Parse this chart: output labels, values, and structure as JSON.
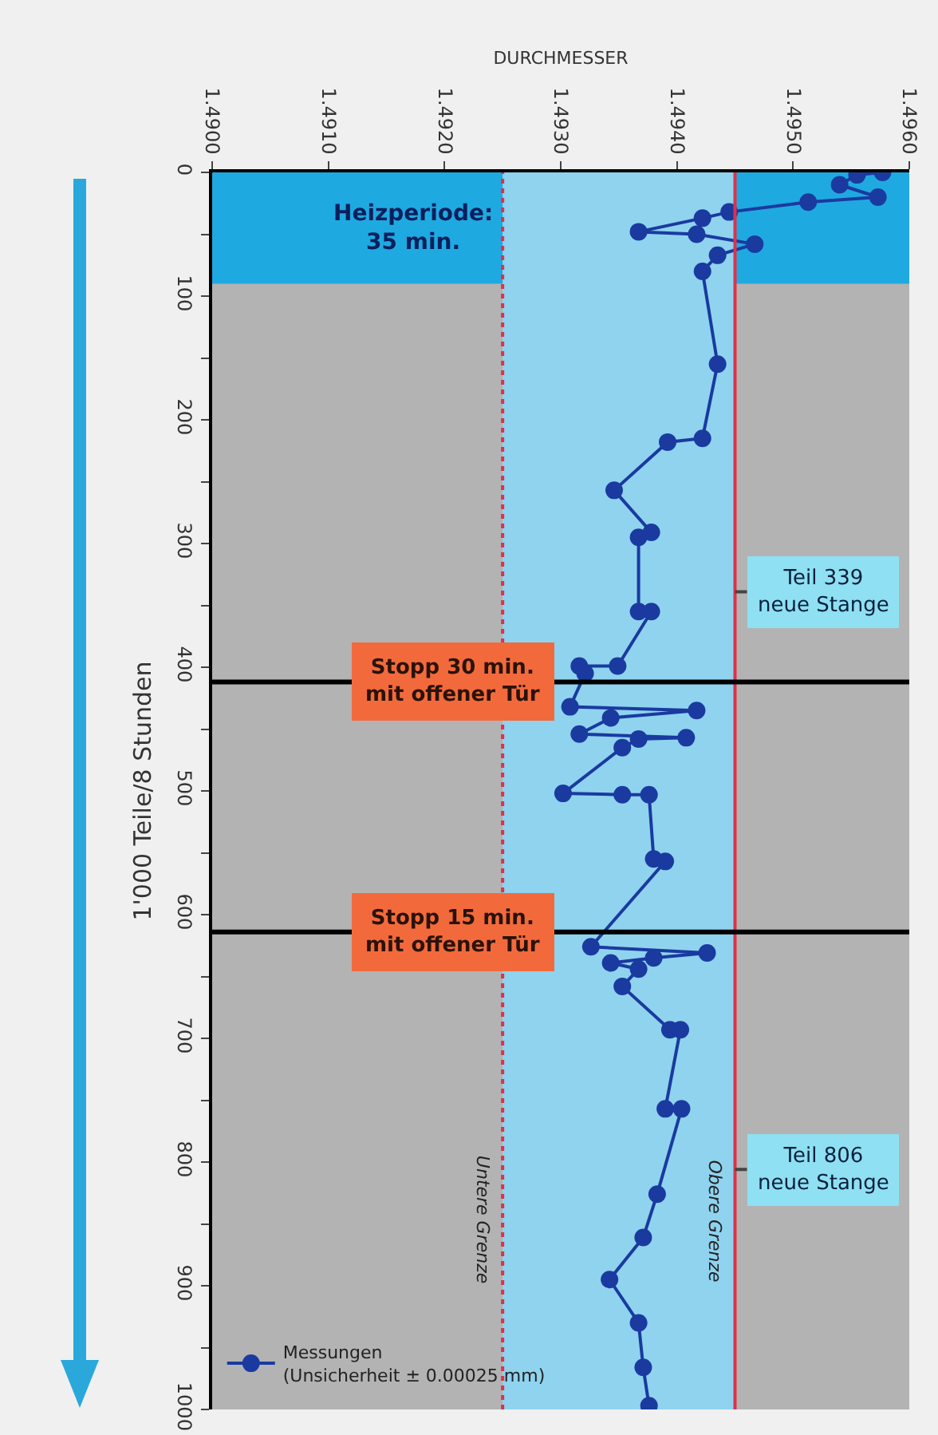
{
  "chart_data": {
    "type": "line",
    "xlabel": "DURCHMESSER",
    "ylabel": "1'000 Teile/8 Stunden",
    "marker": "circle",
    "legend": "bottom left",
    "xlim": [
      1.49,
      1.496
    ],
    "xticks": [
      {
        "value": 1.49,
        "label": "1.4900"
      },
      {
        "value": 1.491,
        "label": "1.4910"
      },
      {
        "value": 1.492,
        "label": "1.4920"
      },
      {
        "value": 1.493,
        "label": "1.4930"
      },
      {
        "value": 1.494,
        "label": "1.4940"
      },
      {
        "value": 1.495,
        "label": "1.4950"
      },
      {
        "value": 1.496,
        "label": "1.4960"
      }
    ],
    "ylim": [
      1000,
      0
    ],
    "yticks": [
      0,
      {
        "value": 50,
        "label": null
      },
      100,
      {
        "value": 150,
        "label": null
      },
      200,
      {
        "value": 250,
        "label": null
      },
      300,
      {
        "value": 350,
        "label": null
      },
      400,
      {
        "value": 450,
        "label": null
      },
      500,
      {
        "value": 550,
        "label": null
      },
      600,
      {
        "value": 650,
        "label": null
      },
      700,
      {
        "value": 750,
        "label": null
      },
      800,
      {
        "value": 850,
        "label": null
      },
      900,
      {
        "value": 950,
        "label": null
      },
      1000
    ],
    "series": [
      {
        "name": "Messungen\n(Unsicherheit ± 0.00025 mm)",
        "color": "#1a3aa0",
        "x": [
          1.49577,
          1.49555,
          1.4954,
          1.49573,
          1.49513,
          1.49445,
          1.49422,
          1.49367,
          1.49417,
          1.49467,
          1.49435,
          1.49422,
          1.49435,
          1.49422,
          1.49392,
          1.49346,
          1.49378,
          1.49367,
          1.49367,
          1.49378,
          1.49349,
          1.49316,
          1.49321,
          1.49308,
          1.49417,
          1.49343,
          1.49316,
          1.49408,
          1.49367,
          1.49353,
          1.49302,
          1.49353,
          1.49376,
          1.4938,
          1.4939,
          1.49326,
          1.49426,
          1.4938,
          1.49343,
          1.49367,
          1.49353,
          1.49394,
          1.49403,
          1.4939,
          1.49404,
          1.49383,
          1.49371,
          1.49342,
          1.49367,
          1.49371,
          1.49376
        ],
        "values": [
          0,
          2,
          10,
          20,
          24,
          32,
          37,
          48,
          50,
          58,
          67,
          80,
          155,
          215,
          218,
          257,
          291,
          295,
          355,
          355,
          399,
          399,
          405,
          432,
          435,
          441,
          454,
          457,
          458,
          465,
          502,
          503,
          503,
          555,
          557,
          626,
          631,
          635,
          639,
          644,
          658,
          693,
          693,
          757,
          757,
          826,
          861,
          895,
          930,
          966,
          997
        ]
      }
    ],
    "ref_lines": [
      {
        "axis": "x",
        "value": 1.4945,
        "label": "Obere Grenze",
        "color": "#e0304a",
        "line_style": "solid"
      },
      {
        "axis": "x",
        "value": 1.4925,
        "label": "Untere Grenze",
        "color": "#e0304a",
        "line_style": "dotted"
      },
      {
        "axis": "y",
        "value": 412,
        "label": "Stopp 30 min.\nmit offener Tür",
        "color": "#000000"
      },
      {
        "axis": "y",
        "value": 614,
        "label": "Stopp 15 min.\nmit offener Tür",
        "color": "#000000"
      }
    ],
    "bands": [
      {
        "axis": "y",
        "from": 0,
        "to": 90,
        "label": "Heizperiode:\n35 min.",
        "color": "#1fa9e1"
      },
      {
        "axis": "x",
        "from": 1.4925,
        "to": 1.4945,
        "color": "#8fd3ef"
      }
    ],
    "annotations": [
      {
        "text": "Teil 339\nneue Stange",
        "x": 1.4945,
        "y": 339
      },
      {
        "text": "Teil 806\nneue Stange",
        "x": 1.4945,
        "y": 806
      }
    ]
  }
}
